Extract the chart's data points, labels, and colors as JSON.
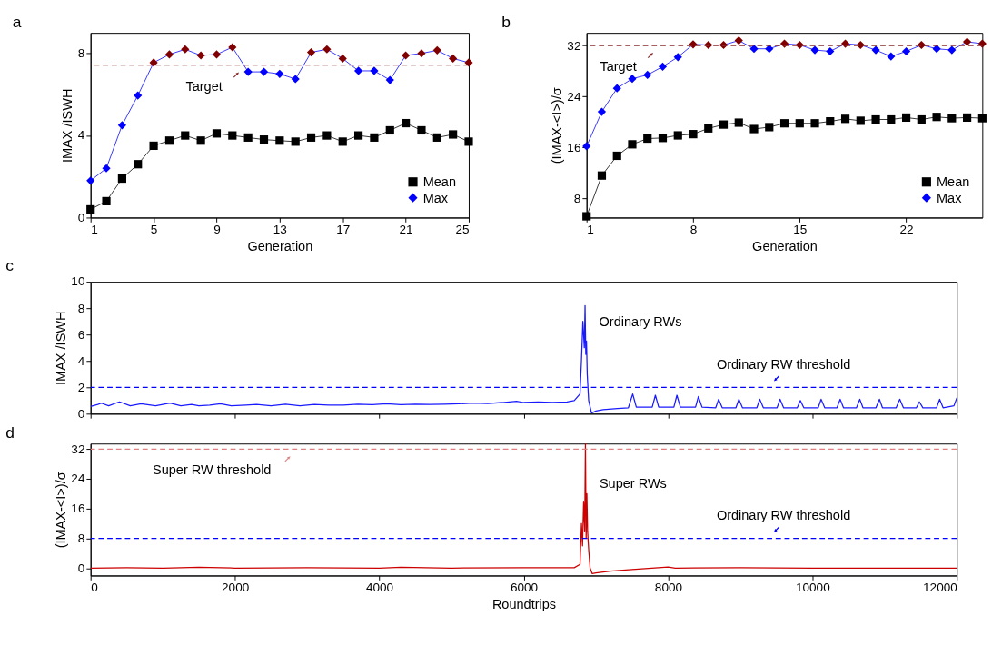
{
  "chart_data": [
    {
      "type": "line",
      "title": "a",
      "xlabel": "Generation",
      "ylabel": "IMAX /ISWH",
      "x": [
        1,
        2,
        3,
        4,
        5,
        6,
        7,
        8,
        9,
        10,
        11,
        12,
        13,
        14,
        15,
        16,
        17,
        18,
        19,
        20,
        21,
        22,
        23,
        24,
        25
      ],
      "xlim": [
        1,
        25
      ],
      "xticks": [
        1,
        5,
        9,
        13,
        17,
        21,
        25
      ],
      "ylim": [
        0,
        9
      ],
      "yticks": [
        0,
        4,
        8
      ],
      "legend": "bottom right",
      "series": [
        {
          "name": "Mean",
          "color": "#000000",
          "marker": "square",
          "values": [
            0.4,
            0.8,
            1.9,
            2.6,
            3.5,
            3.75,
            4.0,
            3.75,
            4.1,
            4.0,
            3.9,
            3.8,
            3.75,
            3.7,
            3.9,
            4.0,
            3.7,
            4.0,
            3.9,
            4.25,
            4.6,
            4.25,
            3.9,
            4.05,
            3.7
          ]
        },
        {
          "name": "Max",
          "color": "#0000ff",
          "marker": "diamond",
          "values": [
            1.8,
            2.4,
            4.5,
            5.95,
            7.55,
            7.95,
            8.2,
            7.9,
            7.95,
            8.3,
            7.1,
            7.1,
            7.0,
            6.75,
            8.05,
            8.2,
            7.75,
            7.15,
            7.15,
            6.7,
            7.9,
            8.0,
            8.15,
            7.75,
            7.55
          ],
          "colors": [
            "#0000ff",
            "#0000ff",
            "#0000ff",
            "#0000ff",
            "#800000",
            "#800000",
            "#800000",
            "#800000",
            "#800000",
            "#800000",
            "#0000ff",
            "#0000ff",
            "#0000ff",
            "#0000ff",
            "#800000",
            "#800000",
            "#800000",
            "#0000ff",
            "#0000ff",
            "#0000ff",
            "#800000",
            "#800000",
            "#800000",
            "#800000",
            "#800000"
          ]
        }
      ],
      "ref_lines": [
        {
          "axis": "y",
          "value": 7.43,
          "color": "#8b2d2d",
          "line_style": "dashed",
          "label": "Target"
        }
      ]
    },
    {
      "type": "line",
      "title": "b",
      "xlabel": "Generation",
      "ylabel": "(IMAX-<I>)/σ",
      "x": [
        1,
        2,
        3,
        4,
        5,
        6,
        7,
        8,
        9,
        10,
        11,
        12,
        13,
        14,
        15,
        16,
        17,
        18,
        19,
        20,
        21,
        22,
        23,
        24,
        25,
        26,
        27
      ],
      "xlim": [
        1,
        27
      ],
      "xticks": [
        1,
        8,
        15,
        22
      ],
      "ylim": [
        5,
        34
      ],
      "yticks": [
        8,
        16,
        24,
        32
      ],
      "legend": "bottom right",
      "series": [
        {
          "name": "Mean",
          "color": "#000000",
          "marker": "square",
          "values": [
            5.2,
            11.6,
            14.7,
            16.5,
            17.4,
            17.5,
            17.9,
            18.1,
            19.0,
            19.6,
            19.9,
            18.9,
            19.2,
            19.8,
            19.8,
            19.8,
            20.1,
            20.5,
            20.2,
            20.4,
            20.4,
            20.7,
            20.4,
            20.8,
            20.6,
            20.7,
            20.6
          ]
        },
        {
          "name": "Max",
          "color": "#0000ff",
          "marker": "diamond",
          "values": [
            16.2,
            21.6,
            25.3,
            26.8,
            27.4,
            28.7,
            30.2,
            32.2,
            32.1,
            32.1,
            32.8,
            31.5,
            31.5,
            32.3,
            32.1,
            31.3,
            31.1,
            32.3,
            32.1,
            31.3,
            30.3,
            31.1,
            32.1,
            31.5,
            31.3,
            32.6,
            32.3
          ],
          "colors": [
            "#0000ff",
            "#0000ff",
            "#0000ff",
            "#0000ff",
            "#0000ff",
            "#0000ff",
            "#0000ff",
            "#800000",
            "#800000",
            "#800000",
            "#800000",
            "#0000ff",
            "#0000ff",
            "#800000",
            "#800000",
            "#0000ff",
            "#0000ff",
            "#800000",
            "#800000",
            "#0000ff",
            "#0000ff",
            "#0000ff",
            "#800000",
            "#0000ff",
            "#0000ff",
            "#800000",
            "#800000"
          ]
        }
      ],
      "ref_lines": [
        {
          "axis": "y",
          "value": 32,
          "color": "#8b2d2d",
          "line_style": "dashed",
          "label": "Target"
        }
      ]
    },
    {
      "type": "line",
      "title": "c",
      "ylabel": "IMAX /ISWH",
      "tick_labels": "y",
      "xlim": [
        0,
        12000
      ],
      "xticks": [
        0,
        2000,
        4000,
        6000,
        8000,
        10000,
        12000
      ],
      "ylim": [
        0,
        10
      ],
      "yticks": [
        0,
        2,
        4,
        6,
        8,
        10
      ],
      "x": [
        0,
        100,
        150,
        250,
        400,
        550,
        700,
        900,
        1000,
        1100,
        1250,
        1400,
        1500,
        1650,
        1800,
        1950,
        2150,
        2300,
        2500,
        2700,
        2900,
        3100,
        3300,
        3500,
        3700,
        3900,
        4100,
        4300,
        4500,
        4700,
        4900,
        5100,
        5300,
        5500,
        5700,
        5900,
        6000,
        6200,
        6400,
        6600,
        6700,
        6780,
        6800,
        6820,
        6840,
        6850,
        6860,
        6870,
        6880,
        6900,
        6940,
        7000,
        7100,
        7300,
        7450,
        7510,
        7560,
        7780,
        7824,
        7870,
        8080,
        8122,
        8170,
        8380,
        8420,
        8470,
        8660,
        8700,
        8750,
        8940,
        8981,
        9030,
        9230,
        9270,
        9320,
        9510,
        9551,
        9600,
        9790,
        9832,
        9880,
        10080,
        10120,
        10170,
        10340,
        10384,
        10430,
        10610,
        10656,
        10700,
        10880,
        10928,
        10970,
        11160,
        11209,
        11260,
        11440,
        11481,
        11530,
        11720,
        11762,
        11810,
        11960,
        12000
      ],
      "series": [
        {
          "color": "#1a1aff",
          "values": [
            0.55,
            0.7,
            0.8,
            0.6,
            0.9,
            0.6,
            0.75,
            0.6,
            0.7,
            0.8,
            0.6,
            0.7,
            0.6,
            0.65,
            0.75,
            0.6,
            0.65,
            0.7,
            0.6,
            0.72,
            0.6,
            0.7,
            0.65,
            0.65,
            0.72,
            0.68,
            0.75,
            0.68,
            0.72,
            0.7,
            0.72,
            0.75,
            0.8,
            0.78,
            0.85,
            0.95,
            0.85,
            0.9,
            0.85,
            0.9,
            1.0,
            1.5,
            4.0,
            7.0,
            5.0,
            8.2,
            4.5,
            5.5,
            3.0,
            1.0,
            0.05,
            0.2,
            0.3,
            0.4,
            0.45,
            1.5,
            0.5,
            0.5,
            1.4,
            0.5,
            0.5,
            1.4,
            0.5,
            0.5,
            1.3,
            0.5,
            0.45,
            1.1,
            0.45,
            0.45,
            1.1,
            0.45,
            0.45,
            1.1,
            0.45,
            0.45,
            1.1,
            0.45,
            0.45,
            1.0,
            0.45,
            0.45,
            1.1,
            0.45,
            0.45,
            1.1,
            0.45,
            0.45,
            1.1,
            0.45,
            0.45,
            1.1,
            0.45,
            0.45,
            1.1,
            0.45,
            0.45,
            0.9,
            0.45,
            0.45,
            1.1,
            0.45,
            0.6,
            1.2
          ]
        }
      ],
      "ref_lines": [
        {
          "axis": "y",
          "value": 2,
          "color": "#0000ff",
          "line_style": "dashed",
          "label": "Ordinary RW threshold"
        }
      ],
      "annotations": [
        "Ordinary RWs"
      ]
    },
    {
      "type": "line",
      "title": "d",
      "xlabel": "Roundtrips",
      "ylabel": "(IMAX-<I>)/σ",
      "xlim": [
        0,
        12000
      ],
      "xticks": [
        0,
        2000,
        4000,
        6000,
        8000,
        10000,
        12000
      ],
      "ylim": [
        -2,
        33.5
      ],
      "yticks": [
        0,
        8,
        16,
        24,
        32
      ],
      "x": [
        0,
        500,
        1000,
        1500,
        2000,
        3000,
        4000,
        4300,
        5000,
        6000,
        6700,
        6780,
        6800,
        6815,
        6830,
        6845,
        6855,
        6865,
        6875,
        6885,
        6900,
        6920,
        6950,
        7000,
        7200,
        7500,
        8000,
        8100,
        9000,
        10000,
        11000,
        12000
      ],
      "series": [
        {
          "color": "#cc0000",
          "values": [
            0,
            0.1,
            0,
            0.2,
            0,
            0.1,
            0,
            0.2,
            0,
            0.1,
            0.1,
            1,
            12,
            6,
            18,
            10,
            33.5,
            8,
            20,
            10,
            5,
            0,
            -1.5,
            -1.3,
            -0.8,
            -0.4,
            0.3,
            0,
            0.1,
            0,
            0,
            0
          ]
        }
      ],
      "ref_lines": [
        {
          "axis": "y",
          "value": 32,
          "color": "#e08080",
          "line_style": "dashed",
          "label": "Super RW threshold"
        },
        {
          "axis": "y",
          "value": 8,
          "color": "#0000ff",
          "line_style": "dashed",
          "label": "Ordinary RW threshold"
        }
      ],
      "annotations": [
        "Super RWs"
      ]
    }
  ]
}
